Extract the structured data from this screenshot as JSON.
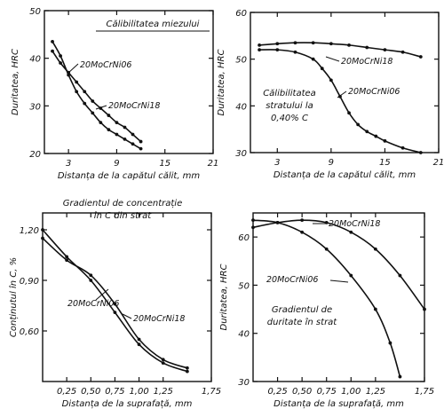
{
  "chart_data": [
    {
      "type": "line",
      "ylabel": "Duritatea, HRC",
      "xlabel": "Distanța de la capătul călit, mm",
      "xlim": [
        0,
        21
      ],
      "ylim": [
        20,
        50
      ],
      "xticks": [
        "3",
        "9",
        "15",
        "21"
      ],
      "yticks": [
        "20",
        "30",
        "40",
        "50"
      ],
      "annotation": [
        "Călibilitatea miezului"
      ],
      "series": [
        {
          "name": "20MoCrNi06",
          "x": [
            1,
            2,
            3,
            4,
            5,
            6,
            7,
            8,
            9,
            10,
            11,
            12
          ],
          "y": [
            43.5,
            40.5,
            36.5,
            33,
            30.5,
            28.5,
            26.5,
            25,
            24,
            23,
            22,
            21
          ]
        },
        {
          "name": "20MoCrNi18",
          "x": [
            1,
            2,
            3,
            4,
            5,
            6,
            7,
            8,
            9,
            10,
            11,
            12
          ],
          "y": [
            41.5,
            39,
            37,
            35,
            33,
            31,
            29.5,
            28,
            26.5,
            25.5,
            24,
            22.5
          ]
        }
      ]
    },
    {
      "type": "line",
      "ylabel": "Duritatea, HRC",
      "xlabel": "Distanța de la capătul călit, mm",
      "xlim": [
        0,
        21
      ],
      "ylim": [
        30,
        60
      ],
      "xticks": [
        "3",
        "9",
        "15",
        "21"
      ],
      "yticks": [
        "30",
        "40",
        "50",
        "60"
      ],
      "annotation": [
        "Călibilitatea",
        "stratului la",
        "0,40% C"
      ],
      "series": [
        {
          "name": "20MoCrNi18",
          "x": [
            1,
            3,
            5,
            7,
            9,
            11,
            13,
            15,
            17,
            19
          ],
          "y": [
            53,
            53.3,
            53.5,
            53.5,
            53.3,
            53,
            52.5,
            52,
            51.5,
            50.5
          ]
        },
        {
          "name": "20MoCrNi06",
          "x": [
            1,
            3,
            5,
            7,
            8,
            9,
            10,
            11,
            12,
            13,
            14,
            15,
            17,
            19
          ],
          "y": [
            52,
            52,
            51.5,
            50,
            48,
            45.5,
            42,
            38.5,
            36,
            34.5,
            33.5,
            32.5,
            31,
            30
          ]
        }
      ]
    },
    {
      "type": "line",
      "ylabel": "Conținutul în C, %",
      "xlabel": "Distanța de la suprafață, mm",
      "xlim": [
        0,
        1.75
      ],
      "ylim": [
        0.3,
        1.3
      ],
      "xticks": [
        "0,25",
        "0,50",
        "0,75",
        "1,00",
        "1,25",
        "1,75"
      ],
      "yticks": [
        "1,20",
        "0,90",
        "0,60"
      ],
      "annotation": [
        "Gradientul de concentrație",
        "în C din strat"
      ],
      "series": [
        {
          "name": "20MoCrNi06",
          "x": [
            0,
            0.25,
            0.5,
            0.75,
            1.0,
            1.25,
            1.5
          ],
          "y": [
            1.2,
            1.04,
            0.9,
            0.71,
            0.52,
            0.41,
            0.36
          ]
        },
        {
          "name": "20MoCrNi18",
          "x": [
            0,
            0.25,
            0.5,
            0.75,
            1.0,
            1.25,
            1.5
          ],
          "y": [
            1.15,
            1.02,
            0.93,
            0.76,
            0.55,
            0.43,
            0.38
          ]
        }
      ]
    },
    {
      "type": "line",
      "ylabel": "Duritatea, HRC",
      "xlabel": "Distanța de la suprafață, mm",
      "xlim": [
        0,
        1.75
      ],
      "ylim": [
        30,
        65
      ],
      "xticks": [
        "0,25",
        "0,50",
        "0,75",
        "1,00",
        "1,25",
        "1,75"
      ],
      "yticks": [
        "30",
        "40",
        "50",
        "60"
      ],
      "annotation": [
        "Gradientul de",
        "duritate în strat"
      ],
      "series": [
        {
          "name": "20MoCrNi18",
          "x": [
            0,
            0.25,
            0.5,
            0.75,
            1.0,
            1.25,
            1.5,
            1.75
          ],
          "y": [
            62,
            63,
            63.5,
            63,
            61,
            57.5,
            52,
            45
          ]
        },
        {
          "name": "20MoCrNi06",
          "x": [
            0,
            0.25,
            0.5,
            0.75,
            1.0,
            1.25,
            1.4,
            1.5
          ],
          "y": [
            63.5,
            63,
            61,
            57.5,
            52,
            45,
            38,
            31
          ]
        }
      ]
    }
  ]
}
